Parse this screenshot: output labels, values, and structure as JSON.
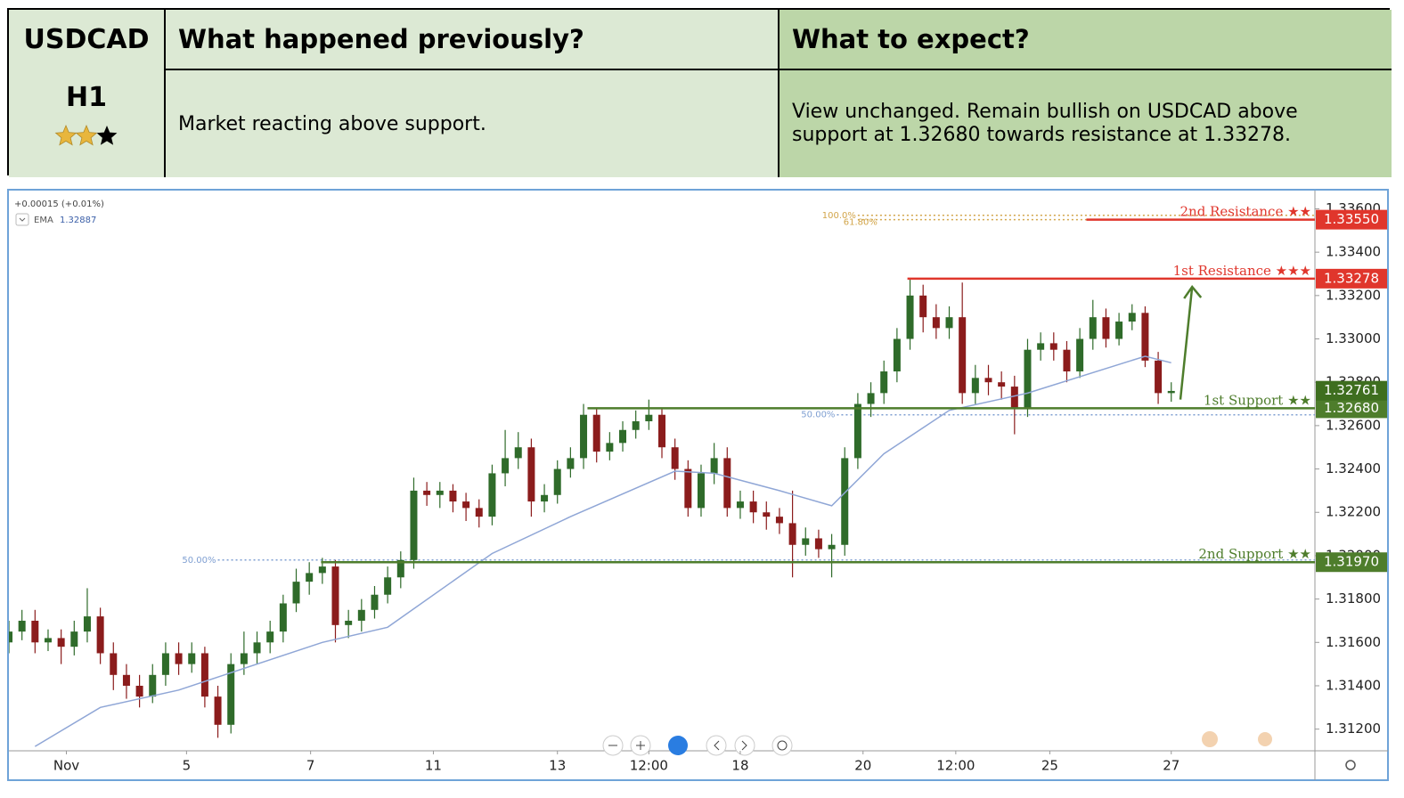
{
  "header": {
    "symbol": "USDCAD",
    "timeframe": "H1",
    "rating": 2,
    "max_rating": 3,
    "col_previous": "What happened previously?",
    "col_expect": "What to expect?",
    "previous": "Market reacting above support.",
    "expect": "View unchanged. Remain bullish on USDCAD above support at 1.32680 towards resistance at 1.33278."
  },
  "chart_data": {
    "type": "candlestick",
    "change": "+0.00015 (+0.01%)",
    "grid": false,
    "up_color": "#2f6b2a",
    "down_color": "#8b1c1c",
    "xlim": [
      0,
      100
    ],
    "ylim": [
      1.311,
      1.3368
    ],
    "xticks": [
      {
        "value": 4.4,
        "label": "Nov"
      },
      {
        "value": 13.6,
        "label": "5"
      },
      {
        "value": 23.1,
        "label": "7"
      },
      {
        "value": 32.5,
        "label": "11"
      },
      {
        "value": 42,
        "label": "13"
      },
      {
        "value": 49,
        "label": "12:00"
      },
      {
        "value": 56,
        "label": "18"
      },
      {
        "value": 65.4,
        "label": "20"
      },
      {
        "value": 72.5,
        "label": "12:00"
      },
      {
        "value": 79.7,
        "label": "25"
      },
      {
        "value": 89,
        "label": "27"
      }
    ],
    "yticks": [
      {
        "value": 1.312,
        "label": "1.31200"
      },
      {
        "value": 1.314,
        "label": "1.31400"
      },
      {
        "value": 1.316,
        "label": "1.31600"
      },
      {
        "value": 1.318,
        "label": "1.31800"
      },
      {
        "value": 1.32,
        "label": "1.32000"
      },
      {
        "value": 1.322,
        "label": "1.32200"
      },
      {
        "value": 1.324,
        "label": "1.32400"
      },
      {
        "value": 1.326,
        "label": "1.32600"
      },
      {
        "value": 1.328,
        "label": "1.32800"
      },
      {
        "value": 1.33,
        "label": "1.33000"
      },
      {
        "value": 1.332,
        "label": "1.33200"
      },
      {
        "value": 1.334,
        "label": "1.33400"
      },
      {
        "value": 1.336,
        "label": "1.33600"
      }
    ],
    "x": [
      0,
      1,
      2,
      3,
      4,
      5,
      6,
      7,
      8,
      9,
      10,
      11,
      12,
      13,
      14,
      15,
      16,
      17,
      18,
      19,
      20,
      21,
      22,
      23,
      24,
      25,
      26,
      27,
      28,
      29,
      30,
      31,
      32,
      33,
      34,
      35,
      36,
      37,
      38,
      39,
      40,
      41,
      42,
      43,
      44,
      45,
      46,
      47,
      48,
      49,
      50,
      51,
      52,
      53,
      54,
      55,
      56,
      57,
      58,
      59,
      60,
      61,
      62,
      63,
      64,
      65,
      66,
      67,
      68,
      69,
      70,
      71,
      72,
      73,
      74,
      75,
      76,
      77,
      78,
      79,
      80,
      81,
      82,
      83,
      84,
      85,
      86,
      87,
      88,
      89
    ],
    "open": [
      1.316,
      1.3165,
      1.317,
      1.316,
      1.3162,
      1.3158,
      1.3165,
      1.3172,
      1.3155,
      1.3145,
      1.314,
      1.3135,
      1.3145,
      1.3155,
      1.315,
      1.3155,
      1.3135,
      1.3122,
      1.315,
      1.3155,
      1.316,
      1.3165,
      1.3178,
      1.3188,
      1.3192,
      1.3195,
      1.3168,
      1.317,
      1.3175,
      1.3182,
      1.319,
      1.3198,
      1.323,
      1.3228,
      1.323,
      1.3225,
      1.3222,
      1.3218,
      1.3238,
      1.3245,
      1.325,
      1.3225,
      1.3228,
      1.324,
      1.3245,
      1.3265,
      1.3248,
      1.3252,
      1.3258,
      1.3262,
      1.3265,
      1.325,
      1.324,
      1.3222,
      1.3238,
      1.3245,
      1.3222,
      1.3225,
      1.322,
      1.3218,
      1.3215,
      1.3205,
      1.3208,
      1.3203,
      1.3205,
      1.3245,
      1.327,
      1.3275,
      1.3285,
      1.33,
      1.332,
      1.331,
      1.3305,
      1.331,
      1.3275,
      1.3282,
      1.328,
      1.3278,
      1.3268,
      1.3295,
      1.3298,
      1.3295,
      1.3285,
      1.33,
      1.331,
      1.33,
      1.3308,
      1.3312,
      1.329,
      1.3275
    ],
    "high": [
      1.317,
      1.3175,
      1.3175,
      1.3166,
      1.3166,
      1.317,
      1.3185,
      1.3176,
      1.316,
      1.315,
      1.3145,
      1.315,
      1.316,
      1.316,
      1.316,
      1.3158,
      1.314,
      1.3155,
      1.3165,
      1.3165,
      1.317,
      1.3182,
      1.3194,
      1.3197,
      1.3199,
      1.3198,
      1.3175,
      1.318,
      1.3186,
      1.3195,
      1.3202,
      1.3236,
      1.3234,
      1.3234,
      1.3233,
      1.3229,
      1.3226,
      1.3242,
      1.3258,
      1.3257,
      1.3254,
      1.3233,
      1.3244,
      1.325,
      1.327,
      1.3268,
      1.3257,
      1.3262,
      1.3267,
      1.3272,
      1.3268,
      1.3254,
      1.3244,
      1.3242,
      1.3252,
      1.325,
      1.323,
      1.323,
      1.3225,
      1.3222,
      1.323,
      1.3213,
      1.3212,
      1.321,
      1.325,
      1.3275,
      1.328,
      1.329,
      1.3305,
      1.3328,
      1.3325,
      1.3316,
      1.3315,
      1.3326,
      1.3288,
      1.3288,
      1.3285,
      1.3283,
      1.33,
      1.3303,
      1.3303,
      1.3299,
      1.3305,
      1.3318,
      1.3314,
      1.3312,
      1.3316,
      1.3315,
      1.3294,
      1.328
    ],
    "low": [
      1.3155,
      1.3161,
      1.3155,
      1.3156,
      1.315,
      1.3154,
      1.316,
      1.315,
      1.3138,
      1.3134,
      1.313,
      1.3132,
      1.314,
      1.3145,
      1.3146,
      1.313,
      1.3116,
      1.3118,
      1.3145,
      1.315,
      1.3155,
      1.316,
      1.3174,
      1.3182,
      1.3187,
      1.316,
      1.3162,
      1.3165,
      1.3171,
      1.3178,
      1.3185,
      1.3194,
      1.3223,
      1.3222,
      1.322,
      1.3216,
      1.3213,
      1.3214,
      1.3232,
      1.324,
      1.3218,
      1.322,
      1.3224,
      1.3236,
      1.324,
      1.3243,
      1.3244,
      1.3248,
      1.3254,
      1.3258,
      1.3245,
      1.3235,
      1.3218,
      1.3218,
      1.3233,
      1.3218,
      1.3217,
      1.3215,
      1.3212,
      1.321,
      1.319,
      1.32,
      1.3199,
      1.319,
      1.32,
      1.324,
      1.3264,
      1.327,
      1.328,
      1.3295,
      1.3303,
      1.33,
      1.33,
      1.327,
      1.327,
      1.3274,
      1.3272,
      1.3256,
      1.3264,
      1.329,
      1.329,
      1.328,
      1.3282,
      1.3295,
      1.3296,
      1.3297,
      1.3304,
      1.3287,
      1.327,
      1.3271
    ],
    "close": [
      1.3165,
      1.317,
      1.316,
      1.3162,
      1.3158,
      1.3165,
      1.3172,
      1.3155,
      1.3145,
      1.314,
      1.3135,
      1.3145,
      1.3155,
      1.315,
      1.3155,
      1.3135,
      1.3122,
      1.315,
      1.3155,
      1.316,
      1.3165,
      1.3178,
      1.3188,
      1.3192,
      1.3195,
      1.3168,
      1.317,
      1.3175,
      1.3182,
      1.319,
      1.3198,
      1.323,
      1.3228,
      1.323,
      1.3225,
      1.3222,
      1.3218,
      1.3238,
      1.3245,
      1.325,
      1.3225,
      1.3228,
      1.324,
      1.3245,
      1.3265,
      1.3248,
      1.3252,
      1.3258,
      1.3262,
      1.3265,
      1.325,
      1.324,
      1.3222,
      1.3238,
      1.3245,
      1.3222,
      1.3225,
      1.322,
      1.3218,
      1.3215,
      1.3205,
      1.3208,
      1.3203,
      1.3205,
      1.3245,
      1.327,
      1.3275,
      1.3285,
      1.33,
      1.332,
      1.331,
      1.3305,
      1.331,
      1.3275,
      1.3282,
      1.328,
      1.3278,
      1.3268,
      1.3295,
      1.3298,
      1.3295,
      1.3285,
      1.33,
      1.331,
      1.33,
      1.3308,
      1.3312,
      1.329,
      1.3275,
      1.3276
    ],
    "ema": {
      "name": "EMA",
      "value": 1.32887,
      "color": "#8fa6d6",
      "x": [
        2,
        7,
        13,
        16,
        24,
        29,
        37,
        43,
        51,
        54,
        59,
        63,
        67,
        72,
        78,
        87,
        89
      ],
      "values": [
        1.3112,
        1.313,
        1.3138,
        1.3144,
        1.316,
        1.3167,
        1.3201,
        1.3218,
        1.3239,
        1.3238,
        1.323,
        1.3223,
        1.3247,
        1.3267,
        1.3275,
        1.3292,
        1.3289
      ]
    },
    "levels": [
      {
        "name": "2nd Resistance ★★",
        "value": 1.3355,
        "value_label": "1.33550",
        "color": "#e0362c",
        "x_start": 82.5
      },
      {
        "name": "1st Resistance ★★★",
        "value": 1.33278,
        "color": "#e0362c",
        "x_start": 68.8
      },
      {
        "name": "1st Support ★★",
        "value": 1.3268,
        "value_label": "1.32680",
        "color": "#4e7d2c",
        "x_start": 44.3
      },
      {
        "name": "2nd Support ★★",
        "value": 1.3197,
        "value_label": "1.31970",
        "color": "#4e7d2c",
        "x_start": 23.9
      }
    ],
    "price": {
      "value": 1.32761,
      "color": "#3e6e1f"
    },
    "fibs": [
      {
        "label": "100.0%",
        "value": 1.3357,
        "x_start": 65,
        "color": "#d2a54a"
      },
      {
        "label": "61.80%",
        "value": 1.3355,
        "x_start": 65,
        "color": "#d2a54a"
      },
      {
        "label": "50.00%",
        "value": 1.3265,
        "x_start": 63.4,
        "color": "#7f9fd2"
      },
      {
        "label": "50.00%",
        "value": 1.3198,
        "x_start": 16,
        "color": "#7f9fd2"
      }
    ],
    "arrow": {
      "x": [
        89.7,
        90.6
      ],
      "y": [
        1.3272,
        1.3324
      ],
      "color": "#4e7d2c"
    }
  }
}
